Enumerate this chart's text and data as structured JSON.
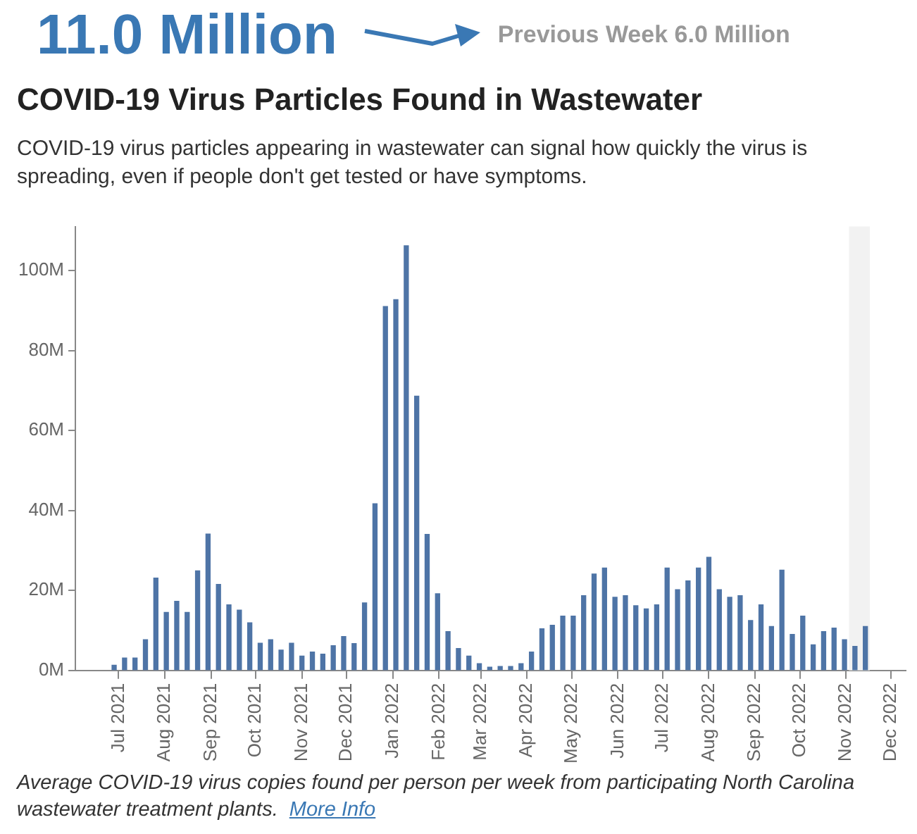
{
  "chart_data": {
    "type": "bar",
    "title": "COVID-19 Virus Particles Found in Wastewater",
    "subtitle": "COVID-19 virus particles appearing in wastewater can signal how quickly the virus is spreading, even if people don't get tested or have symptoms.",
    "annotations": [
      "11.0 Million",
      "Previous Week 6.0 Million",
      "Average COVID-19 virus copies found per person per week from participating North Carolina wastewater treatment plants.",
      "More Info"
    ],
    "x": [
      "2021-06-28",
      "2021-07-05",
      "2021-07-12",
      "2021-07-19",
      "2021-07-26",
      "2021-08-02",
      "2021-08-09",
      "2021-08-16",
      "2021-08-23",
      "2021-08-30",
      "2021-09-06",
      "2021-09-13",
      "2021-09-20",
      "2021-09-27",
      "2021-10-04",
      "2021-10-11",
      "2021-10-18",
      "2021-10-25",
      "2021-11-01",
      "2021-11-08",
      "2021-11-15",
      "2021-11-22",
      "2021-11-29",
      "2021-12-06",
      "2021-12-13",
      "2021-12-20",
      "2021-12-27",
      "2022-01-03",
      "2022-01-10",
      "2022-01-17",
      "2022-01-24",
      "2022-01-31",
      "2022-02-07",
      "2022-02-14",
      "2022-02-21",
      "2022-02-28",
      "2022-03-07",
      "2022-03-14",
      "2022-03-21",
      "2022-03-28",
      "2022-04-04",
      "2022-04-11",
      "2022-04-18",
      "2022-04-25",
      "2022-05-02",
      "2022-05-09",
      "2022-05-16",
      "2022-05-23",
      "2022-05-30",
      "2022-06-06",
      "2022-06-13",
      "2022-06-20",
      "2022-06-27",
      "2022-07-04",
      "2022-07-11",
      "2022-07-18",
      "2022-07-25",
      "2022-08-01",
      "2022-08-08",
      "2022-08-15",
      "2022-08-22",
      "2022-08-29",
      "2022-09-05",
      "2022-09-12",
      "2022-09-19",
      "2022-09-26",
      "2022-10-03",
      "2022-10-10",
      "2022-10-17",
      "2022-10-24",
      "2022-10-31",
      "2022-11-07",
      "2022-11-14"
    ],
    "values": [
      1.3,
      3.1,
      3.1,
      7.7,
      23.1,
      14.5,
      17.3,
      14.5,
      24.9,
      34.1,
      21.5,
      16.4,
      15.1,
      11.9,
      6.8,
      7.7,
      5.1,
      6.8,
      3.6,
      4.6,
      4.1,
      6.2,
      8.5,
      6.7,
      16.9,
      41.7,
      91.0,
      92.7,
      106.2,
      68.6,
      34.0,
      19.2,
      9.7,
      5.5,
      3.6,
      1.7,
      0.8,
      1.0,
      1.0,
      1.7,
      4.6,
      10.4,
      11.3,
      13.6,
      13.6,
      18.7,
      24.1,
      25.6,
      18.3,
      18.7,
      16.2,
      15.4,
      16.4,
      25.6,
      20.2,
      22.4,
      25.6,
      28.3,
      20.2,
      18.3,
      18.7,
      12.5,
      16.4,
      11.0,
      25.1,
      9.0,
      13.6,
      6.4,
      9.7,
      10.6,
      7.7,
      6.0,
      11.0
    ],
    "color": "#4e74a6",
    "xlim": [
      "2021-06-02",
      "2022-12-11"
    ],
    "xticks": [
      {
        "value": "2021-07-01",
        "label": "Jul 2021"
      },
      {
        "value": "2021-08-01",
        "label": "Aug 2021"
      },
      {
        "value": "2021-09-01",
        "label": "Sep 2021"
      },
      {
        "value": "2021-10-01",
        "label": "Oct 2021"
      },
      {
        "value": "2021-11-01",
        "label": "Nov 2021"
      },
      {
        "value": "2021-12-01",
        "label": "Dec 2021"
      },
      {
        "value": "2022-01-01",
        "label": "Jan 2022"
      },
      {
        "value": "2022-02-01",
        "label": "Feb 2022"
      },
      {
        "value": "2022-03-01",
        "label": "Mar 2022"
      },
      {
        "value": "2022-04-01",
        "label": "Apr 2022"
      },
      {
        "value": "2022-05-01",
        "label": "May 2022"
      },
      {
        "value": "2022-06-01",
        "label": "Jun 2022"
      },
      {
        "value": "2022-07-01",
        "label": "Jul 2022"
      },
      {
        "value": "2022-08-01",
        "label": "Aug 2022"
      },
      {
        "value": "2022-09-01",
        "label": "Sep 2022"
      },
      {
        "value": "2022-10-01",
        "label": "Oct 2022"
      },
      {
        "value": "2022-11-01",
        "label": "Nov 2022"
      },
      {
        "value": "2022-12-01",
        "label": "Dec 2022"
      }
    ],
    "ylim": [
      0,
      111
    ],
    "yticks": [
      {
        "value": 0,
        "label": "0M"
      },
      {
        "value": 20,
        "label": "20M"
      },
      {
        "value": 40,
        "label": "40M"
      },
      {
        "value": 60,
        "label": "60M"
      },
      {
        "value": 80,
        "label": "80M"
      },
      {
        "value": 100,
        "label": "100M"
      }
    ],
    "bands": [
      {
        "axis": "x",
        "from": "2022-11-03",
        "to": "2022-11-17",
        "color": "#f2f2f2"
      }
    ],
    "grid": false,
    "legend": false
  }
}
